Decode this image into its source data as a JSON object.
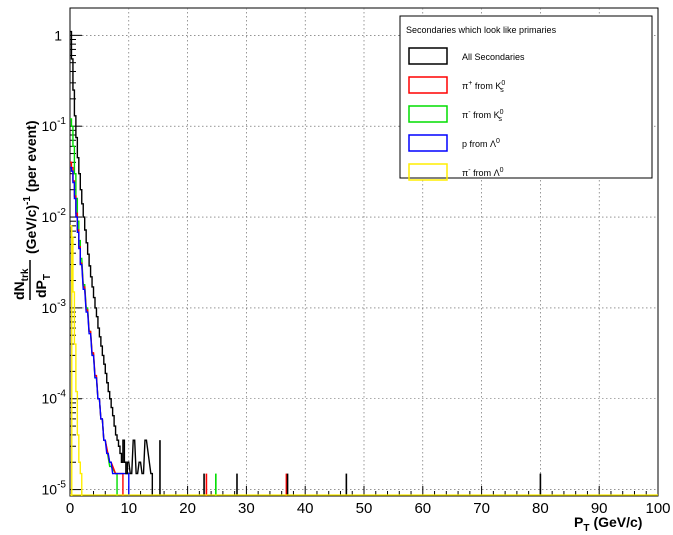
{
  "chart_data": {
    "type": "histogram",
    "title": "",
    "xlabel": "P",
    "xlabel_sub": "T",
    "xlabel_unit": "(GeV/c)",
    "ylabel": {
      "frac_num": "dN",
      "frac_num_sub": "trk",
      "frac_den": "dP",
      "frac_den_sub": "T",
      "units": "(GeV/c)",
      "units_sup": "-1",
      "per_event": "(per event)"
    },
    "xlim": [
      0,
      100
    ],
    "ylim": [
      8.5e-06,
      2.0
    ],
    "yscale": "log",
    "grid": true,
    "legend_placement": "top-right",
    "legend_title": "Secondaries which look like primaries",
    "x_ticks": [
      0,
      10,
      20,
      30,
      40,
      50,
      60,
      70,
      80,
      90,
      100
    ],
    "x_tick_labels": [
      "0",
      "10",
      "20",
      "30",
      "40",
      "50",
      "60",
      "70",
      "80",
      "90",
      "100"
    ],
    "y_ticks": [
      {
        "value": 1,
        "label": "1",
        "sup": ""
      },
      {
        "value": 0.1,
        "label": "10",
        "sup": "-1"
      },
      {
        "value": 0.01,
        "label": "10",
        "sup": "-2"
      },
      {
        "value": 0.001,
        "label": "10",
        "sup": "-3"
      },
      {
        "value": 0.0001,
        "label": "10",
        "sup": "-4"
      },
      {
        "value": 1e-05,
        "label": "10",
        "sup": "-5"
      }
    ],
    "series": [
      {
        "name": "All Secondaries",
        "color": "#000000",
        "x": [
          0.25,
          0.5,
          0.75,
          1.0,
          1.25,
          1.5,
          1.75,
          2.0,
          2.25,
          2.5,
          2.75,
          3.0,
          3.25,
          3.5,
          3.75,
          4.0,
          4.25,
          4.5,
          4.75,
          5.0,
          5.25,
          5.5,
          5.75,
          6.0,
          6.25,
          6.5,
          6.75,
          7.0,
          7.25,
          7.5,
          7.75,
          8.0,
          8.25,
          8.5,
          8.75,
          9.0,
          9.25,
          9.5,
          9.75,
          10.0,
          10.5,
          11.0,
          11.5,
          12.0,
          12.5,
          13.0,
          14.0
        ],
        "y": [
          1.1,
          0.55,
          0.25,
          0.13,
          0.075,
          0.045,
          0.03,
          0.02,
          0.014,
          0.01,
          0.0072,
          0.0052,
          0.0039,
          0.0029,
          0.0022,
          0.0017,
          0.0013,
          0.001,
          0.0008,
          0.0006,
          0.00048,
          0.00038,
          0.0003,
          0.00024,
          0.00019,
          0.00015,
          0.00012,
          0.0001,
          8e-05,
          6.5e-05,
          5e-05,
          4e-05,
          3.5e-05,
          3e-05,
          2.5e-05,
          2e-05,
          3.5e-05,
          2e-05,
          1.5e-05,
          2e-05,
          1.5e-05,
          3.5e-05,
          1.5e-05,
          2e-05,
          1.5e-05,
          3.5e-05,
          1.5e-05
        ]
      },
      {
        "name": "π+ from K0s",
        "color": "#ff0000",
        "x": [
          0.25,
          0.5,
          0.75,
          1.0,
          1.25,
          1.5,
          1.75,
          2.0,
          2.5,
          3.0,
          3.5,
          4.0,
          4.5,
          5.0,
          5.5,
          6.0,
          7.0,
          8.0,
          9.0
        ],
        "y": [
          0.04,
          0.035,
          0.025,
          0.017,
          0.011,
          0.0072,
          0.0047,
          0.0031,
          0.0017,
          0.00095,
          0.00055,
          0.00032,
          0.00018,
          0.0001,
          6e-05,
          3.5e-05,
          2e-05,
          1.5e-05,
          1.5e-05
        ]
      },
      {
        "name": "π- from K0s",
        "color": "#00dd00",
        "x": [
          0.25,
          0.5,
          0.75,
          1.0,
          1.25,
          1.5,
          1.75,
          2.0,
          2.5,
          3.0,
          3.5,
          4.0,
          4.5,
          5.0,
          5.5,
          6.0,
          7.0,
          8.0
        ],
        "y": [
          0.12,
          0.1,
          0.06,
          0.03,
          0.016,
          0.009,
          0.0055,
          0.0035,
          0.0018,
          0.001,
          0.00055,
          0.00031,
          0.00017,
          0.0001,
          6e-05,
          3.5e-05,
          1.8e-05,
          1.5e-05
        ]
      },
      {
        "name": "p from Λ0",
        "color": "#0000ff",
        "x": [
          0.25,
          0.5,
          0.75,
          1.0,
          1.25,
          1.5,
          1.75,
          2.0,
          2.5,
          3.0,
          3.5,
          4.0,
          4.5,
          5.0,
          5.5,
          6.0,
          6.5,
          7.0,
          7.5,
          8.0,
          9.0,
          10.0
        ],
        "y": [
          0.035,
          0.032,
          0.024,
          0.016,
          0.01,
          0.0068,
          0.0045,
          0.003,
          0.0016,
          0.0009,
          0.00052,
          0.0003,
          0.00017,
          0.0001,
          6e-05,
          3.5e-05,
          2.5e-05,
          2e-05,
          1.5e-05,
          1.5e-05,
          1.5e-05,
          1.5e-05
        ]
      },
      {
        "name": "π- from Λ0",
        "color": "#ffee00",
        "x": [
          0.25,
          0.5,
          0.75,
          1.0,
          1.25,
          1.5,
          1.75,
          2.0
        ],
        "y": [
          0.008,
          0.006,
          0.0015,
          0.0004,
          0.00012,
          4e-05,
          2e-05,
          1.5e-05
        ]
      }
    ],
    "spikes": [
      {
        "x": 15.3,
        "y": 3.5e-05,
        "color": "#000000"
      },
      {
        "x": 22.8,
        "y": 1.5e-05,
        "color": "#000000"
      },
      {
        "x": 23.2,
        "y": 1.5e-05,
        "color": "#ff0000"
      },
      {
        "x": 24.8,
        "y": 1.5e-05,
        "color": "#00dd00"
      },
      {
        "x": 28.4,
        "y": 1.5e-05,
        "color": "#000000"
      },
      {
        "x": 36.8,
        "y": 1.5e-05,
        "color": "#ff0000"
      },
      {
        "x": 37.0,
        "y": 1.5e-05,
        "color": "#000000"
      },
      {
        "x": 47.0,
        "y": 1.5e-05,
        "color": "#000000"
      },
      {
        "x": 80.0,
        "y": 1.5e-05,
        "color": "#000000"
      }
    ],
    "legend_entries": [
      {
        "label": "All Secondaries",
        "color": "#000000"
      },
      {
        "label": "π",
        "sup": "+",
        "mid": " from K",
        "sup2": "0",
        "sub2": "s",
        "color": "#ff0000"
      },
      {
        "label": "π",
        "sup": "-",
        "mid": " from K",
        "sup2": "0",
        "sub2": "s",
        "color": "#00dd00"
      },
      {
        "label": "p from Λ",
        "sup": "",
        "mid": "",
        "sup2": "0",
        "sub2": "",
        "color": "#0000ff"
      },
      {
        "label": "π",
        "sup": "-",
        "mid": " from Λ",
        "sup2": "0",
        "sub2": "",
        "color": "#ffee00"
      }
    ]
  }
}
